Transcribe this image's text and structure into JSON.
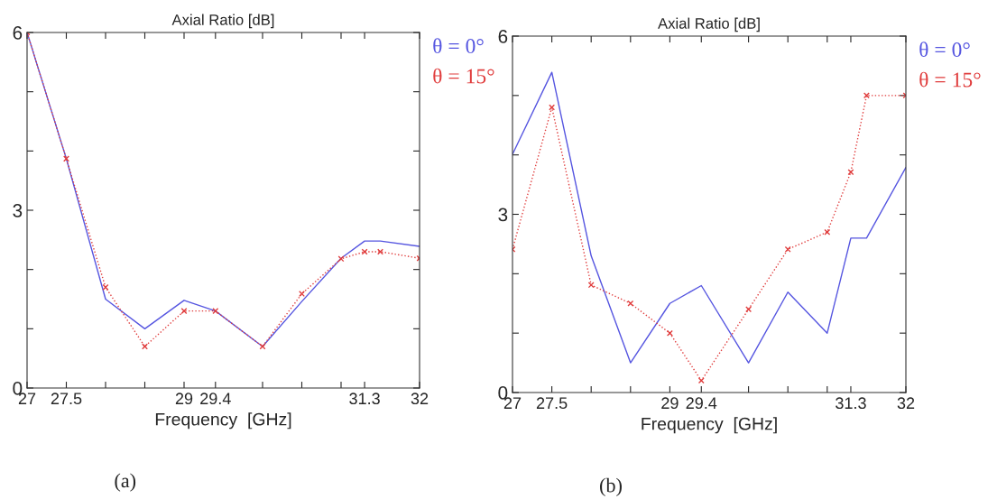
{
  "chart_data": [
    {
      "type": "line",
      "title": "Axial Ratio [dB]",
      "xlabel": "Frequency  [GHz]",
      "x": [
        27,
        27.5,
        28,
        28.5,
        29,
        29.4,
        30,
        30.5,
        31,
        31.3,
        31.5,
        32
      ],
      "series": [
        {
          "name": "θ = 0°",
          "color": "#5555e0",
          "line_style": "solid",
          "marker": "none",
          "values": [
            6,
            3.87,
            1.5,
            1.0,
            1.48,
            1.3,
            0.7,
            1.46,
            2.19,
            2.48,
            2.48,
            2.39
          ]
        },
        {
          "name": "θ = 15°",
          "color": "#e03c3c",
          "line_style": "dotted",
          "marker": "cross",
          "values": [
            6,
            3.87,
            1.7,
            0.7,
            1.3,
            1.3,
            0.7,
            1.59,
            2.18,
            2.3,
            2.3,
            2.19
          ]
        }
      ],
      "xlim": [
        27,
        32
      ],
      "ylim": [
        0,
        6
      ],
      "xticks": [
        27,
        27.5,
        {
          "value": 28,
          "label": null
        },
        {
          "value": 28.5,
          "label": null
        },
        29,
        29.4,
        {
          "value": 30,
          "label": null
        },
        {
          "value": 30.5,
          "label": null
        },
        {
          "value": 31,
          "label": null
        },
        31.3,
        32
      ],
      "yticks": [
        0,
        {
          "value": 1,
          "label": null
        },
        {
          "value": 2,
          "label": null
        },
        3,
        {
          "value": 4,
          "label": null
        },
        {
          "value": 5,
          "label": null
        },
        6
      ],
      "legend": "right",
      "grid": false,
      "annotations": [
        "(a)"
      ]
    },
    {
      "type": "line",
      "title": "Axial Ratio [dB]",
      "xlabel": "Frequency  [GHz]",
      "x": [
        27,
        27.5,
        28,
        28.5,
        29,
        29.4,
        30,
        30.5,
        31,
        31.3,
        31.5,
        32
      ],
      "series": [
        {
          "name": "θ = 0°",
          "color": "#5555e0",
          "line_style": "solid",
          "marker": "none",
          "values": [
            4.01,
            5.39,
            2.3,
            0.5,
            1.5,
            1.8,
            0.5,
            1.69,
            1.0,
            2.6,
            2.6,
            3.79
          ]
        },
        {
          "name": "θ = 15°",
          "color": "#e03c3c",
          "line_style": "dotted",
          "marker": "cross",
          "values": [
            2.41,
            4.8,
            1.81,
            1.5,
            1.0,
            0.2,
            1.4,
            2.41,
            2.7,
            3.71,
            5.0,
            5.0
          ]
        }
      ],
      "xlim": [
        27,
        32
      ],
      "ylim": [
        0,
        6
      ],
      "xticks": [
        27,
        27.5,
        {
          "value": 28,
          "label": null
        },
        {
          "value": 28.5,
          "label": null
        },
        29,
        29.4,
        {
          "value": 30,
          "label": null
        },
        {
          "value": 30.5,
          "label": null
        },
        {
          "value": 31,
          "label": null
        },
        31.3,
        32
      ],
      "yticks": [
        0,
        {
          "value": 1,
          "label": null
        },
        {
          "value": 2,
          "label": null
        },
        3,
        {
          "value": 4,
          "label": null
        },
        {
          "value": 5,
          "label": null
        },
        6
      ],
      "legend": "right",
      "grid": false,
      "annotations": [
        "(b)"
      ]
    }
  ]
}
